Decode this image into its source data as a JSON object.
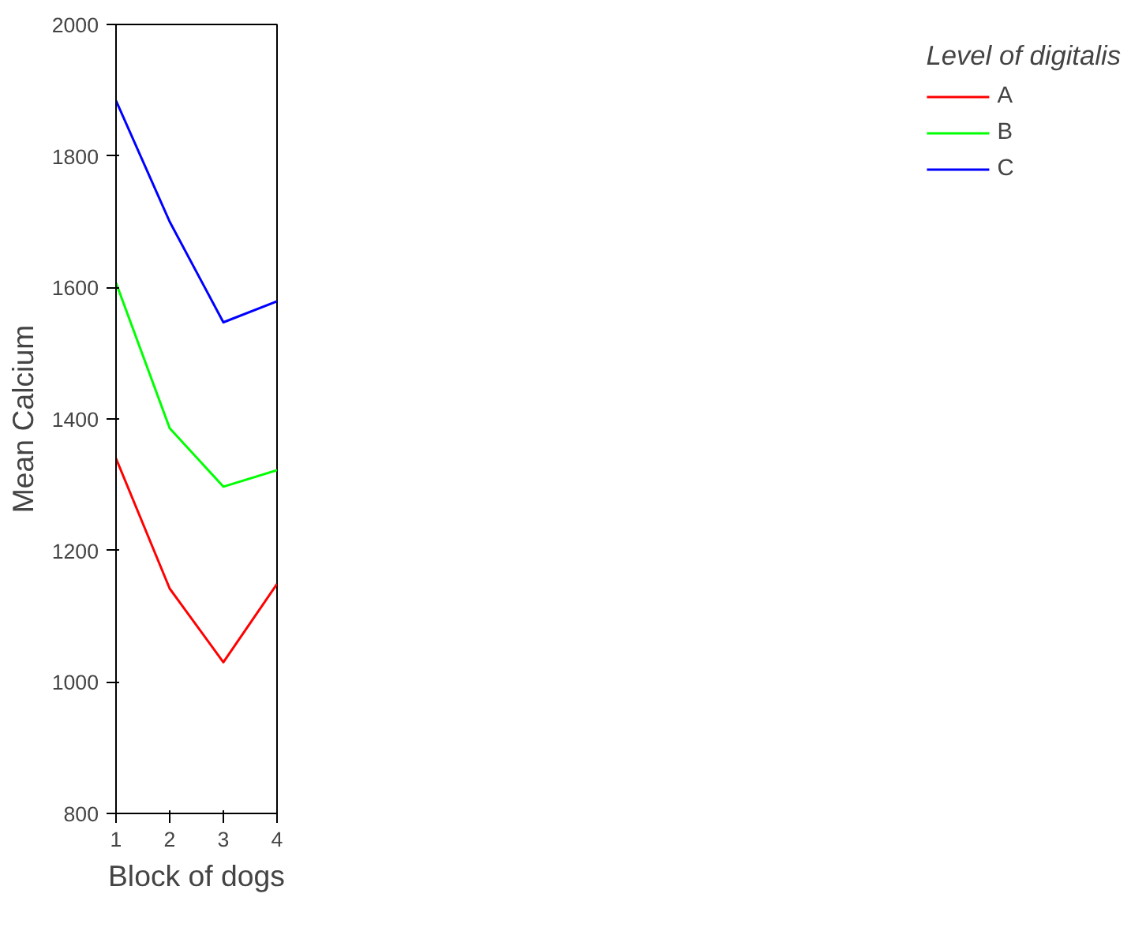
{
  "chart_data": {
    "type": "line",
    "xlabel": "Block of dogs",
    "ylabel": "Mean Calcium",
    "legend_title": "Level of digitalis",
    "legend": "right",
    "grid": false,
    "x": [
      1,
      2,
      3,
      4
    ],
    "xlim": [
      1,
      4
    ],
    "xticks": [
      1,
      2,
      3,
      4
    ],
    "ylim": [
      800,
      2000
    ],
    "yticks": [
      800,
      1000,
      1200,
      1400,
      1600,
      1800,
      2000
    ],
    "series": [
      {
        "name": "A",
        "color": "#ff0000",
        "values": [
          1340,
          1142,
          1030,
          1149
        ]
      },
      {
        "name": "B",
        "color": "#00ff00",
        "values": [
          1607,
          1386,
          1297,
          1322
        ]
      },
      {
        "name": "C",
        "color": "#0000ff",
        "values": [
          1884,
          1700,
          1547,
          1579
        ]
      }
    ]
  }
}
